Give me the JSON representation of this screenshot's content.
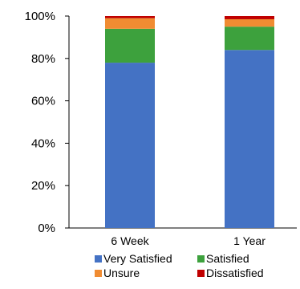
{
  "chart_data": {
    "type": "bar",
    "stacked": true,
    "normalized": true,
    "categories": [
      "6  Week",
      "1 Year"
    ],
    "series": [
      {
        "name": "Very Satisfied",
        "color": "#4472C4",
        "values": [
          78,
          84
        ]
      },
      {
        "name": "Satisfied",
        "color": "#3DA13D",
        "values": [
          16,
          11
        ]
      },
      {
        "name": "Unsure",
        "color": "#F08C32",
        "values": [
          5,
          3.5
        ]
      },
      {
        "name": "Dissatisfied",
        "color": "#C00000",
        "values": [
          1,
          1.5
        ]
      }
    ],
    "ylim": [
      0,
      100
    ],
    "yticks": [
      "0%",
      "20%",
      "40%",
      "60%",
      "80%",
      "100%"
    ],
    "grid": false,
    "legend_position": "bottom",
    "title": "",
    "xlabel": "",
    "ylabel": ""
  }
}
